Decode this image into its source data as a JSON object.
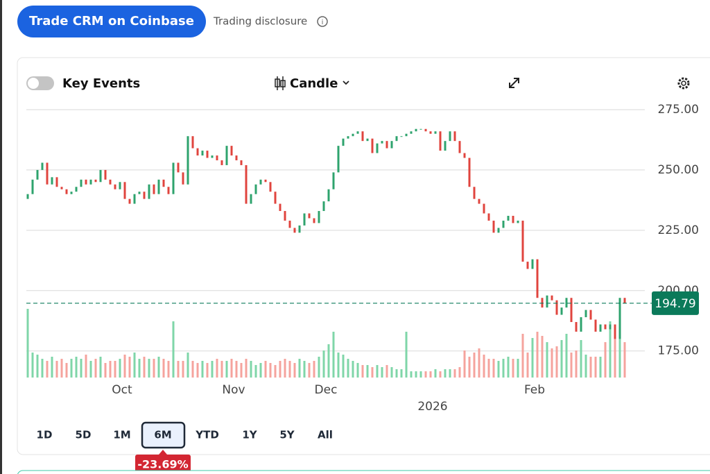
{
  "header": {
    "button": "Trade CRM on Coinbase",
    "disclosure": "Trading disclosure"
  },
  "toolbar": {
    "toggle": "Key Events",
    "chart_type": "Candle"
  },
  "ranges": [
    "1D",
    "5D",
    "1M",
    "6M",
    "YTD",
    "1Y",
    "5Y",
    "All"
  ],
  "period_change": "-23.69%",
  "chart_data": {
    "type": "candlestick",
    "categories": [
      null,
      null,
      null,
      null,
      null,
      null,
      null,
      null,
      null,
      null,
      null,
      null,
      null,
      null,
      null,
      null,
      null,
      null,
      null,
      null,
      "Oct",
      null,
      null,
      null,
      null,
      null,
      null,
      null,
      null,
      null,
      null,
      null,
      null,
      null,
      null,
      null,
      null,
      null,
      null,
      null,
      null,
      null,
      null,
      "Nov",
      null,
      null,
      null,
      null,
      null,
      null,
      null,
      null,
      null,
      null,
      null,
      null,
      null,
      null,
      null,
      null,
      null,
      null,
      "Dec",
      null,
      null,
      null,
      null,
      null,
      null,
      null,
      null,
      null,
      null,
      null,
      null,
      null,
      null,
      null,
      null,
      null,
      null,
      null,
      null,
      null,
      "2026",
      null,
      null,
      null,
      null,
      null,
      null,
      null,
      null,
      null,
      null,
      null,
      null,
      null,
      null,
      null,
      null,
      null,
      null,
      null,
      null,
      "Feb",
      null,
      null,
      null,
      null,
      null,
      null,
      null,
      null,
      null,
      null,
      null,
      null,
      null,
      null,
      null,
      null,
      null,
      null
    ],
    "open": [
      238,
      240,
      246,
      250,
      253,
      244,
      247,
      243,
      242,
      240,
      241,
      243,
      246,
      244,
      246,
      245,
      250,
      246,
      244,
      242,
      245,
      238,
      236,
      240,
      241,
      238,
      244,
      240,
      246,
      243,
      240,
      253,
      249,
      244,
      264,
      259,
      256,
      258,
      255,
      256,
      254,
      252,
      260,
      256,
      254,
      252,
      236,
      240,
      244,
      246,
      245,
      241,
      236,
      233,
      229,
      226,
      224,
      227,
      232,
      230,
      228,
      233,
      237,
      242,
      249,
      260,
      263,
      264,
      265,
      266,
      262,
      263,
      257,
      261,
      262,
      259,
      262,
      264,
      264,
      265,
      266,
      267,
      267,
      266,
      265,
      266,
      258,
      262,
      266,
      262,
      257,
      255,
      243,
      238,
      236,
      232,
      229,
      224,
      226,
      229,
      231,
      228,
      229,
      212,
      209,
      213,
      197,
      193,
      198,
      196,
      190,
      193,
      197,
      187,
      183,
      189,
      192,
      188,
      183,
      186,
      184,
      186,
      180,
      197
    ],
    "close": [
      240,
      246,
      250,
      253,
      244,
      247,
      243,
      242,
      240,
      241,
      243,
      246,
      244,
      246,
      245,
      250,
      246,
      244,
      242,
      245,
      238,
      236,
      240,
      241,
      238,
      244,
      240,
      246,
      243,
      240,
      253,
      249,
      244,
      264,
      259,
      256,
      258,
      255,
      256,
      254,
      252,
      260,
      256,
      254,
      252,
      236,
      240,
      244,
      246,
      245,
      241,
      236,
      233,
      229,
      226,
      224,
      227,
      232,
      230,
      228,
      233,
      237,
      242,
      249,
      260,
      263,
      264,
      265,
      266,
      262,
      263,
      257,
      261,
      262,
      259,
      262,
      264,
      264,
      265,
      266,
      267,
      267,
      266,
      265,
      266,
      258,
      262,
      266,
      262,
      257,
      255,
      243,
      238,
      236,
      232,
      229,
      224,
      226,
      229,
      231,
      228,
      229,
      212,
      209,
      213,
      197,
      193,
      198,
      196,
      190,
      193,
      197,
      187,
      183,
      189,
      192,
      188,
      183,
      186,
      184,
      186,
      180,
      197,
      194.79
    ],
    "volume": [
      33,
      12,
      11,
      9,
      8,
      10,
      8,
      9,
      7,
      9,
      10,
      9,
      11,
      8,
      9,
      10,
      7,
      8,
      8,
      9,
      11,
      10,
      12,
      9,
      10,
      9,
      9,
      10,
      9,
      8,
      27,
      8,
      8,
      12,
      8,
      7,
      8,
      7,
      8,
      9,
      8,
      8,
      9,
      8,
      7,
      9,
      8,
      6,
      7,
      8,
      7,
      6,
      8,
      9,
      8,
      7,
      9,
      8,
      7,
      8,
      10,
      13,
      16,
      22,
      12,
      11,
      9,
      8,
      7,
      6,
      6,
      5,
      6,
      5,
      6,
      5,
      4,
      4,
      22,
      3,
      3,
      3,
      3,
      3,
      4,
      3,
      4,
      4,
      4,
      5,
      13,
      10,
      12,
      14,
      11,
      9,
      9,
      8,
      9,
      10,
      9,
      9,
      21,
      12,
      19,
      22,
      20,
      17,
      14,
      15,
      18,
      21,
      12,
      13,
      18,
      11,
      10,
      10,
      10,
      17,
      27,
      19,
      27,
      17
    ],
    "last_price": 194.79,
    "up_color": "#2ea36d",
    "down_color": "#e0443e",
    "volume_up_color": "#7fd6a8",
    "volume_down_color": "#f5a39d",
    "ylim": [
      164,
      277
    ],
    "yticks": [
      {
        "value": 175,
        "label": "175.00"
      },
      {
        "value": 200,
        "label": "200.00"
      },
      {
        "value": 225,
        "label": "225.00"
      },
      {
        "value": 250,
        "label": "250.00"
      },
      {
        "value": 275,
        "label": "275.00"
      }
    ],
    "grid": true
  }
}
